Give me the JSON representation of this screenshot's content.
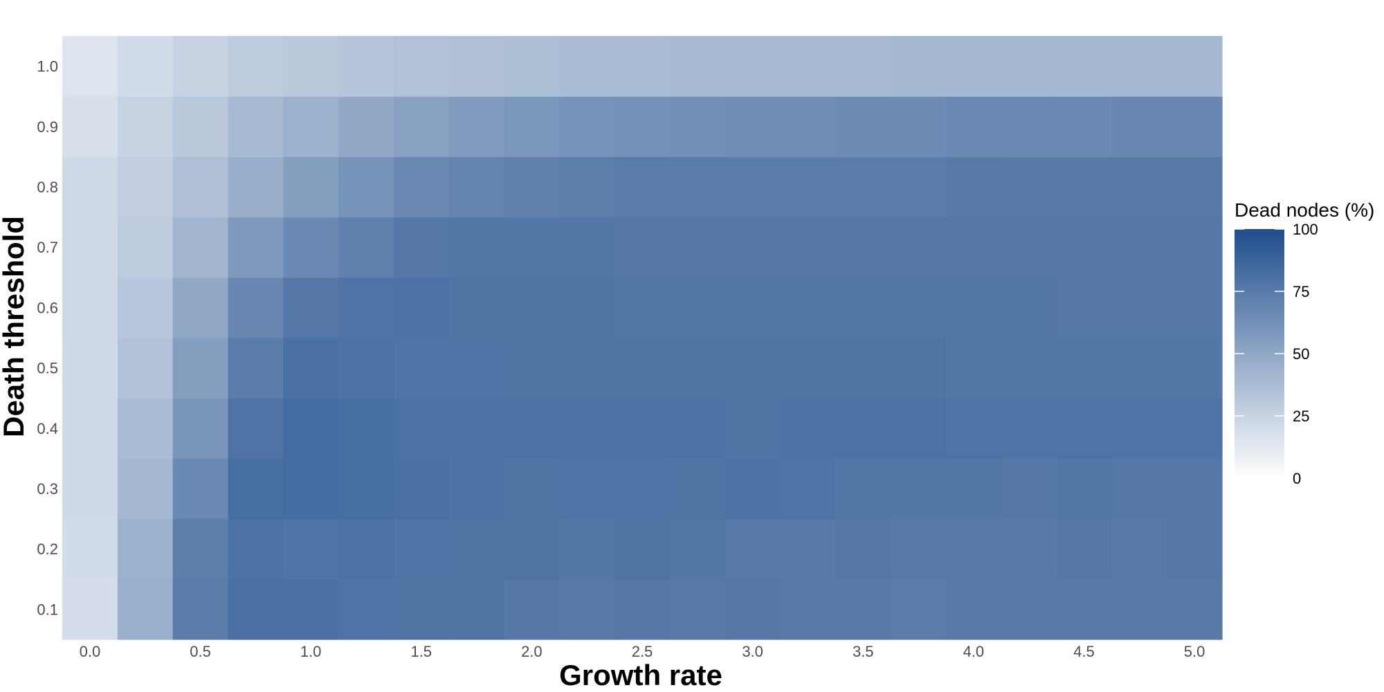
{
  "chart_data": {
    "type": "heatmap",
    "xlabel": "Growth rate",
    "ylabel": "Death threshold",
    "x_tick_labels": [
      "0.0",
      "0.5",
      "1.0",
      "1.5",
      "2.0",
      "2.5",
      "3.0",
      "3.5",
      "4.0",
      "4.5",
      "5.0"
    ],
    "y_tick_labels": [
      "0.1",
      "0.2",
      "0.3",
      "0.4",
      "0.5",
      "0.6",
      "0.7",
      "0.8",
      "0.9",
      "1.0"
    ],
    "x": [
      0.0,
      0.25,
      0.5,
      0.75,
      1.0,
      1.25,
      1.5,
      1.75,
      2.0,
      2.25,
      2.5,
      2.75,
      3.0,
      3.25,
      3.5,
      3.75,
      4.0,
      4.25,
      4.5,
      4.75,
      5.0
    ],
    "y": [
      0.1,
      0.2,
      0.3,
      0.4,
      0.5,
      0.6,
      0.7,
      0.8,
      0.9,
      1.0
    ],
    "xlim": [
      -0.125,
      5.125
    ],
    "ylim": [
      0.05,
      1.05
    ],
    "z": [
      [
        19,
        45,
        74,
        81,
        81,
        79,
        78,
        78,
        76,
        75,
        76,
        75,
        76,
        75,
        75,
        74,
        75,
        75,
        75,
        75,
        75
      ],
      [
        20,
        44,
        73,
        80,
        79,
        80,
        79,
        78,
        78,
        77,
        78,
        77,
        75,
        75,
        76,
        75,
        75,
        75,
        76,
        75,
        76
      ],
      [
        21,
        40,
        66,
        82,
        83,
        82,
        81,
        80,
        78,
        79,
        79,
        78,
        80,
        79,
        77,
        77,
        77,
        76,
        77,
        76,
        76
      ],
      [
        21,
        38,
        60,
        79,
        83,
        82,
        80,
        80,
        80,
        80,
        80,
        80,
        78,
        80,
        80,
        80,
        79,
        79,
        79,
        79,
        79
      ],
      [
        21,
        35,
        55,
        74,
        81,
        80,
        79,
        79,
        78,
        78,
        78,
        78,
        78,
        78,
        78,
        78,
        77,
        77,
        77,
        77,
        77
      ],
      [
        22,
        32,
        49,
        68,
        76,
        79,
        80,
        78,
        78,
        78,
        77,
        77,
        77,
        77,
        77,
        77,
        77,
        77,
        76,
        76,
        76
      ],
      [
        22,
        29,
        41,
        57,
        66,
        71,
        76,
        77,
        77,
        77,
        76,
        76,
        76,
        76,
        76,
        76,
        76,
        76,
        76,
        76,
        76
      ],
      [
        22,
        27,
        36,
        46,
        55,
        61,
        67,
        69,
        71,
        73,
        74,
        74,
        74,
        74,
        74,
        74,
        75,
        75,
        75,
        75,
        75
      ],
      [
        18,
        25,
        31,
        39,
        44,
        49,
        53,
        56,
        59,
        61,
        62,
        63,
        64,
        64,
        65,
        65,
        66,
        67,
        67,
        68,
        68
      ],
      [
        15,
        20,
        25,
        29,
        31,
        33,
        35,
        36,
        37,
        38,
        38,
        39,
        39,
        39,
        39,
        40,
        40,
        40,
        40,
        40,
        40
      ]
    ],
    "legend": {
      "title": "Dead nodes (%)",
      "range": [
        0,
        100
      ],
      "breaks": [
        0,
        25,
        50,
        75,
        100
      ],
      "labels": [
        "0",
        "25",
        "50",
        "75",
        "100"
      ],
      "placement": "right"
    },
    "colors": {
      "low": "#ffffff",
      "high": "#1f4e8c"
    },
    "grid": false
  }
}
